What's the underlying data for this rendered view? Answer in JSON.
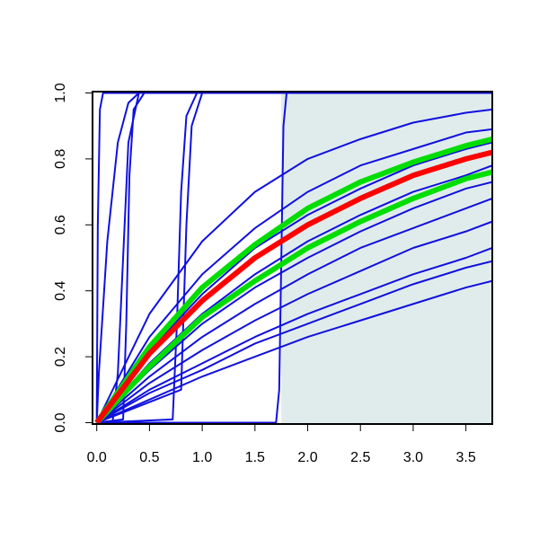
{
  "chart_data": {
    "type": "line",
    "xlim": [
      -0.04,
      3.75
    ],
    "ylim": [
      -0.004,
      1.004
    ],
    "xticks": [
      {
        "value": 0,
        "label": "0.0"
      },
      0.5,
      {
        "value": 1,
        "label": "1.0"
      },
      1.5,
      {
        "value": 2,
        "label": "2.0"
      },
      2.5,
      {
        "value": 3,
        "label": "3.0"
      },
      3.5
    ],
    "yticks": [
      {
        "value": 0,
        "label": "0.0"
      },
      0.2,
      0.4,
      0.6,
      0.8,
      {
        "value": 1,
        "label": "1.0"
      }
    ],
    "shaded_region": {
      "x": [
        1.75,
        3.75
      ],
      "color": "#e0ecec"
    },
    "x": [
      0,
      0.5,
      1,
      1.5,
      2,
      2.5,
      3,
      3.5,
      3.75
    ],
    "series": [
      {
        "color": "#1010e0",
        "width": 2,
        "values": [
          0,
          0.07,
          0.14,
          0.2,
          0.26,
          0.31,
          0.36,
          0.41,
          0.43
        ]
      },
      {
        "color": "#1010e0",
        "width": 2,
        "values": [
          0,
          0.09,
          0.16,
          0.24,
          0.3,
          0.36,
          0.42,
          0.47,
          0.49
        ]
      },
      {
        "color": "#1010e0",
        "width": 2,
        "values": [
          0,
          0.1,
          0.18,
          0.26,
          0.33,
          0.39,
          0.45,
          0.5,
          0.53
        ]
      },
      {
        "color": "#1010e0",
        "width": 2,
        "values": [
          0,
          0.12,
          0.22,
          0.31,
          0.39,
          0.46,
          0.53,
          0.58,
          0.61
        ]
      },
      {
        "color": "#1010e0",
        "width": 2,
        "values": [
          0,
          0.14,
          0.26,
          0.36,
          0.45,
          0.53,
          0.59,
          0.65,
          0.68
        ]
      },
      {
        "color": "#1010e0",
        "width": 2,
        "values": [
          0,
          0.16,
          0.3,
          0.41,
          0.5,
          0.58,
          0.65,
          0.71,
          0.73
        ]
      },
      {
        "color": "#1010e0",
        "width": 2,
        "values": [
          0,
          0.18,
          0.33,
          0.45,
          0.55,
          0.63,
          0.7,
          0.75,
          0.78
        ]
      },
      {
        "color": "#1010e0",
        "width": 2,
        "values": [
          0,
          0.22,
          0.39,
          0.53,
          0.63,
          0.71,
          0.78,
          0.83,
          0.85
        ]
      },
      {
        "color": "#1010e0",
        "width": 2,
        "values": [
          0,
          0.26,
          0.45,
          0.59,
          0.7,
          0.78,
          0.83,
          0.88,
          0.89
        ]
      },
      {
        "color": "#1010e0",
        "width": 2,
        "values": [
          0,
          0.33,
          0.55,
          0.7,
          0.8,
          0.86,
          0.91,
          0.94,
          0.95
        ]
      },
      {
        "color": "#1010e0",
        "width": 2,
        "x": [
          0,
          0.01,
          0.03,
          0.06,
          3.75
        ],
        "values": [
          0,
          0.6,
          0.95,
          1,
          1
        ]
      },
      {
        "color": "#1010e0",
        "width": 2,
        "x": [
          0,
          0.02,
          0.1,
          0.2,
          0.3,
          0.4,
          3.75
        ],
        "values": [
          0,
          0.15,
          0.55,
          0.85,
          0.97,
          1,
          1
        ]
      },
      {
        "color": "#1010e0",
        "width": 2,
        "x": [
          0,
          0.15,
          0.2,
          0.25,
          0.3,
          0.4,
          3.75
        ],
        "values": [
          0,
          0,
          0.15,
          0.5,
          0.85,
          1,
          1
        ]
      },
      {
        "color": "#1010e0",
        "width": 2,
        "x": [
          0,
          0.25,
          0.28,
          0.31,
          0.35,
          0.45,
          3.75
        ],
        "values": [
          0,
          0.01,
          0.3,
          0.75,
          0.95,
          1,
          1
        ]
      },
      {
        "color": "#1010e0",
        "width": 2,
        "x": [
          0,
          0.72,
          0.76,
          0.8,
          0.85,
          0.95,
          3.75
        ],
        "values": [
          0,
          0.01,
          0.3,
          0.7,
          0.93,
          1,
          1
        ]
      },
      {
        "color": "#1010e0",
        "width": 2,
        "x": [
          0,
          0.8,
          0.85,
          0.9,
          1,
          3.75
        ],
        "values": [
          0,
          0.1,
          0.6,
          0.9,
          1,
          1
        ]
      },
      {
        "color": "#1010e0",
        "width": 2,
        "x": [
          0,
          1.7,
          1.73,
          1.75,
          1.77,
          1.8,
          3.75
        ],
        "values": [
          0,
          0,
          0.1,
          0.5,
          0.9,
          1,
          1
        ]
      },
      {
        "color": "#00dd00",
        "width": 6,
        "values": [
          0,
          0.23,
          0.41,
          0.54,
          0.65,
          0.73,
          0.79,
          0.84,
          0.86
        ]
      },
      {
        "color": "#00dd00",
        "width": 6,
        "values": [
          0,
          0.17,
          0.32,
          0.43,
          0.53,
          0.61,
          0.68,
          0.74,
          0.76
        ]
      },
      {
        "color": "#ff0000",
        "width": 6,
        "values": [
          0,
          0.21,
          0.37,
          0.5,
          0.6,
          0.68,
          0.75,
          0.8,
          0.82
        ]
      }
    ]
  }
}
